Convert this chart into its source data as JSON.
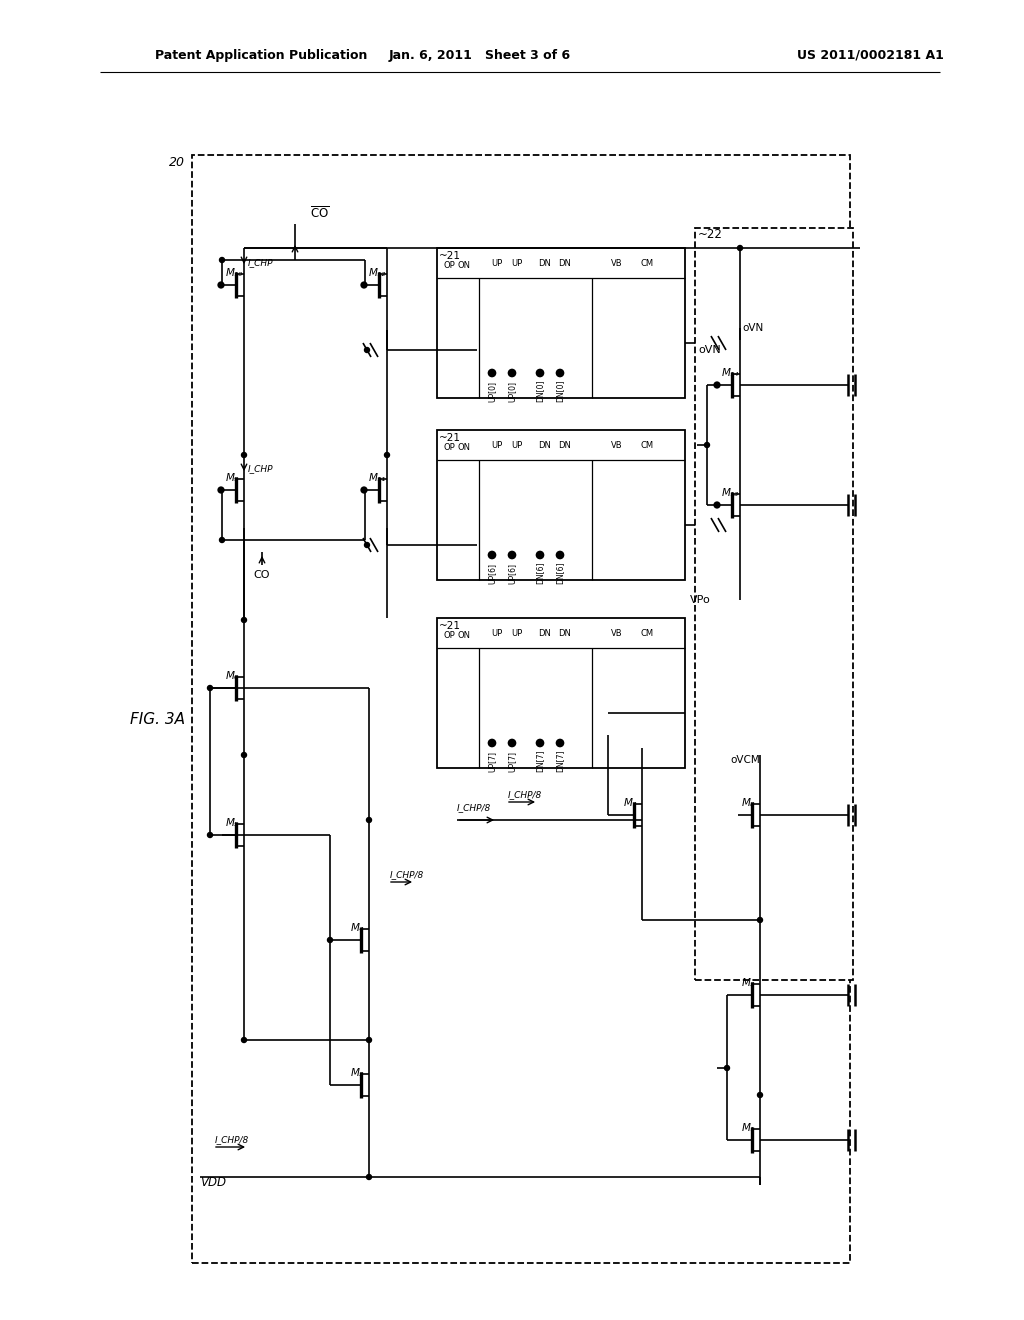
{
  "header_left": "Patent Application Publication",
  "header_center": "Jan. 6, 2011   Sheet 3 of 6",
  "header_right": "US 2011/0002181 A1",
  "figure_label": "FIG. 3A",
  "fig_number": "20",
  "block21_label": "~21",
  "block22_label": "~22",
  "background": "#ffffff"
}
